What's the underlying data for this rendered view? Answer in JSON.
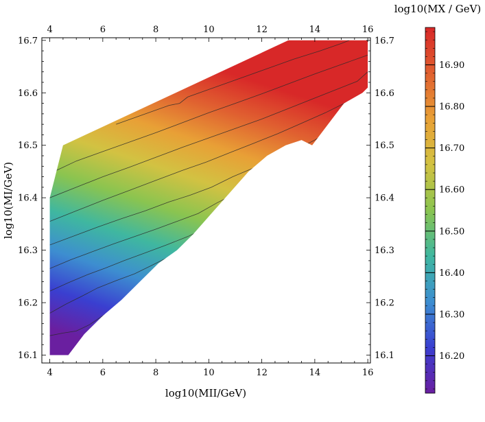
{
  "chart_data": {
    "type": "contour",
    "xlabel": "log10(MII/GeV)",
    "ylabel": "log10(MI/GeV)",
    "colorbar_label": "log10(MX / GeV)",
    "x_ticks": [
      "4",
      "6",
      "8",
      "10",
      "12",
      "14",
      "16"
    ],
    "y_ticks": [
      "16.1",
      "16.2",
      "16.3",
      "16.4",
      "16.5",
      "16.6",
      "16.7"
    ],
    "xlim": [
      3.7,
      16.1
    ],
    "ylim": [
      16.085,
      16.705
    ],
    "colorbar_ticks": [
      "16.20",
      "16.30",
      "16.40",
      "16.50",
      "16.60",
      "16.70",
      "16.80",
      "16.90"
    ],
    "colorbar_range": [
      16.11,
      16.99
    ],
    "colormap": [
      "#6a1fa0",
      "#3a3fd0",
      "#3d8ed0",
      "#3fb7a0",
      "#8ac450",
      "#d2c242",
      "#e8a036",
      "#e06030",
      "#d82828"
    ],
    "region_boundary": [
      [
        4.0,
        16.1
      ],
      [
        4.7,
        16.1
      ],
      [
        5.3,
        16.14
      ],
      [
        6.0,
        16.175
      ],
      [
        6.7,
        16.205
      ],
      [
        7.4,
        16.24
      ],
      [
        8.1,
        16.275
      ],
      [
        8.8,
        16.3
      ],
      [
        9.4,
        16.33
      ],
      [
        10.1,
        16.37
      ],
      [
        10.8,
        16.41
      ],
      [
        11.5,
        16.45
      ],
      [
        12.2,
        16.48
      ],
      [
        12.9,
        16.5
      ],
      [
        13.5,
        16.51
      ],
      [
        13.9,
        16.5
      ],
      [
        14.5,
        16.54
      ],
      [
        15.1,
        16.58
      ],
      [
        15.8,
        16.6
      ],
      [
        16.0,
        16.61
      ],
      [
        16.0,
        16.7
      ],
      [
        13.0,
        16.7
      ],
      [
        4.5,
        16.5
      ],
      [
        4.0,
        16.4
      ]
    ],
    "contour_levels": [
      16.2,
      16.3,
      16.4,
      16.5,
      16.6,
      16.7,
      16.8,
      16.9
    ],
    "contours": [
      {
        "level": 16.15,
        "points": [
          [
            4.0,
            16.137
          ],
          [
            4.5,
            16.142
          ],
          [
            5.0,
            16.146
          ],
          [
            5.5,
            16.158
          ],
          [
            6.0,
            16.175
          ],
          [
            6.4,
            16.188
          ],
          [
            6.8,
            16.19
          ]
        ]
      },
      {
        "level": 16.25,
        "points": [
          [
            4.0,
            16.18
          ],
          [
            4.6,
            16.197
          ],
          [
            5.2,
            16.212
          ],
          [
            5.8,
            16.228
          ],
          [
            6.5,
            16.242
          ],
          [
            7.2,
            16.255
          ],
          [
            7.8,
            16.27
          ],
          [
            8.4,
            16.285
          ],
          [
            9.0,
            16.29
          ]
        ]
      },
      {
        "level": 16.35,
        "points": [
          [
            4.0,
            16.222
          ],
          [
            4.7,
            16.238
          ],
          [
            5.4,
            16.253
          ],
          [
            6.1,
            16.266
          ],
          [
            6.8,
            16.28
          ],
          [
            7.6,
            16.295
          ],
          [
            8.4,
            16.31
          ],
          [
            9.2,
            16.326
          ],
          [
            10.0,
            16.345
          ],
          [
            10.6,
            16.36
          ],
          [
            11.2,
            16.385
          ],
          [
            11.6,
            16.39
          ]
        ]
      },
      {
        "level": 16.45,
        "points": [
          [
            4.0,
            16.265
          ],
          [
            4.8,
            16.282
          ],
          [
            5.6,
            16.297
          ],
          [
            6.4,
            16.312
          ],
          [
            7.2,
            16.326
          ],
          [
            8.0,
            16.34
          ],
          [
            8.8,
            16.355
          ],
          [
            9.6,
            16.37
          ],
          [
            10.3,
            16.39
          ],
          [
            11.0,
            16.408
          ],
          [
            11.8,
            16.425
          ],
          [
            12.6,
            16.445
          ],
          [
            13.2,
            16.468
          ],
          [
            13.6,
            16.483
          ],
          [
            14.0,
            16.49
          ]
        ]
      },
      {
        "level": 16.55,
        "points": [
          [
            4.0,
            16.31
          ],
          [
            4.9,
            16.327
          ],
          [
            5.8,
            16.344
          ],
          [
            6.7,
            16.36
          ],
          [
            7.6,
            16.375
          ],
          [
            8.5,
            16.392
          ],
          [
            9.3,
            16.405
          ],
          [
            10.1,
            16.42
          ],
          [
            10.9,
            16.44
          ],
          [
            11.7,
            16.457
          ],
          [
            12.5,
            16.472
          ],
          [
            13.3,
            16.492
          ],
          [
            14.0,
            16.51
          ],
          [
            14.7,
            16.532
          ],
          [
            15.3,
            16.556
          ],
          [
            15.7,
            16.59
          ],
          [
            16.0,
            16.598
          ]
        ]
      },
      {
        "level": 16.65,
        "points": [
          [
            4.0,
            16.355
          ],
          [
            5.0,
            16.375
          ],
          [
            6.0,
            16.395
          ],
          [
            7.0,
            16.414
          ],
          [
            8.0,
            16.433
          ],
          [
            9.0,
            16.452
          ],
          [
            9.9,
            16.468
          ],
          [
            10.8,
            16.486
          ],
          [
            11.7,
            16.504
          ],
          [
            12.6,
            16.522
          ],
          [
            13.5,
            16.542
          ],
          [
            14.4,
            16.562
          ],
          [
            15.2,
            16.582
          ],
          [
            15.7,
            16.594
          ],
          [
            16.0,
            16.598
          ]
        ]
      },
      {
        "level": 16.75,
        "points": [
          [
            4.0,
            16.4
          ],
          [
            5.0,
            16.42
          ],
          [
            6.0,
            16.44
          ],
          [
            7.0,
            16.458
          ],
          [
            8.0,
            16.477
          ],
          [
            9.0,
            16.496
          ],
          [
            10.0,
            16.514
          ],
          [
            11.0,
            16.532
          ],
          [
            12.0,
            16.55
          ],
          [
            13.0,
            16.57
          ],
          [
            14.0,
            16.59
          ],
          [
            15.0,
            16.61
          ],
          [
            15.6,
            16.622
          ],
          [
            16.0,
            16.64
          ]
        ]
      },
      {
        "level": 16.85,
        "points": [
          [
            4.25,
            16.452
          ],
          [
            5.0,
            16.47
          ],
          [
            6.0,
            16.488
          ],
          [
            7.0,
            16.506
          ],
          [
            8.0,
            16.524
          ],
          [
            9.0,
            16.543
          ],
          [
            10.0,
            16.562
          ],
          [
            11.0,
            16.58
          ],
          [
            12.0,
            16.598
          ],
          [
            13.0,
            16.617
          ],
          [
            14.0,
            16.636
          ],
          [
            15.0,
            16.654
          ],
          [
            16.0,
            16.672
          ]
        ]
      },
      {
        "level": 16.95,
        "points": [
          [
            6.5,
            16.54
          ],
          [
            7.5,
            16.558
          ],
          [
            8.5,
            16.576
          ],
          [
            8.9,
            16.58
          ],
          [
            9.2,
            16.592
          ],
          [
            10.2,
            16.61
          ],
          [
            11.2,
            16.628
          ],
          [
            12.2,
            16.646
          ],
          [
            13.2,
            16.664
          ],
          [
            14.2,
            16.68
          ],
          [
            15.0,
            16.694
          ],
          [
            15.3,
            16.7
          ]
        ]
      }
    ],
    "grid": false
  }
}
